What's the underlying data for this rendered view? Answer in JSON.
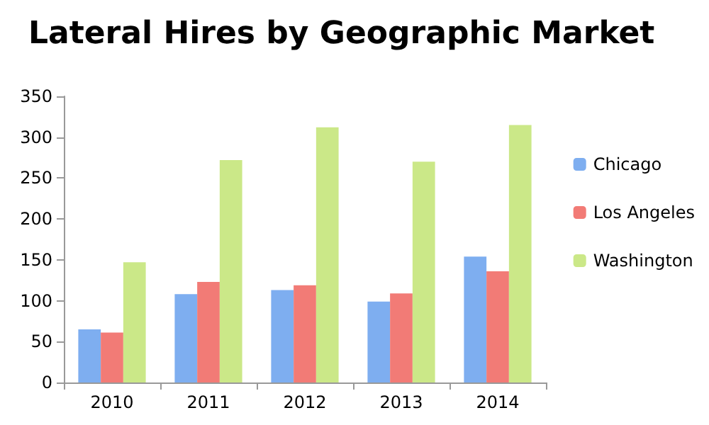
{
  "chart_data": {
    "type": "bar",
    "title": "Lateral Hires by Geographic Market",
    "categories": [
      "2010",
      "2011",
      "2012",
      "2013",
      "2014"
    ],
    "series": [
      {
        "name": "Chicago",
        "color": "#7eaef0",
        "values": [
          65,
          108,
          113,
          99,
          154
        ]
      },
      {
        "name": "Los Angeles",
        "color": "#f27b76",
        "values": [
          61,
          123,
          119,
          109,
          136
        ]
      },
      {
        "name": "Washington",
        "color": "#cbe888",
        "values": [
          147,
          272,
          312,
          270,
          315
        ]
      }
    ],
    "ylim": [
      0,
      350
    ],
    "yticks": [
      0,
      50,
      100,
      150,
      200,
      250,
      300,
      350
    ],
    "grid": false,
    "legend": "right"
  }
}
